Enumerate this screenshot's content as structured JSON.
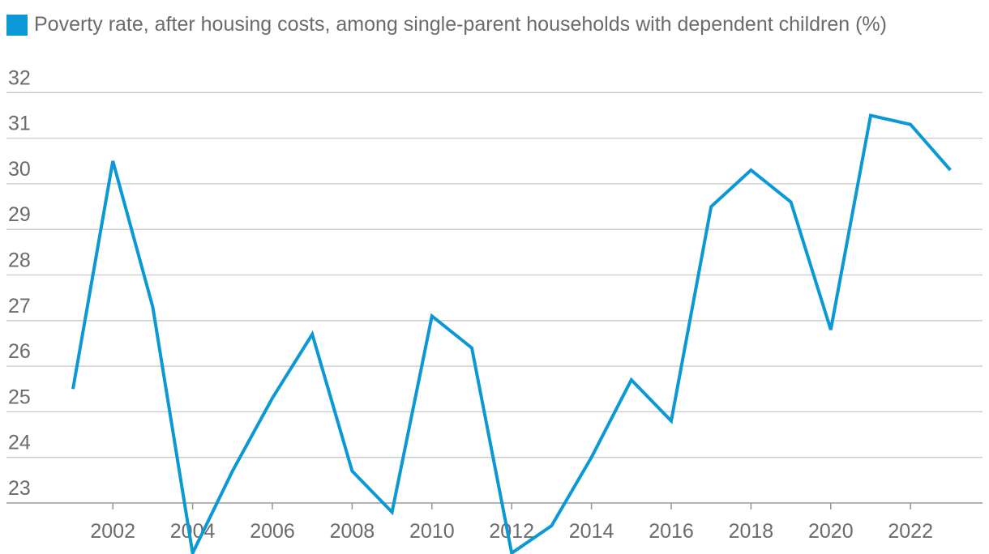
{
  "chart_data": {
    "type": "line",
    "title": "",
    "xlabel": "",
    "ylabel": "",
    "legend_position": "top-left",
    "grid": true,
    "ylim": [
      22,
      33
    ],
    "xlim": [
      2001,
      2023
    ],
    "y_ticks": [
      23,
      24,
      25,
      26,
      27,
      28,
      29,
      30,
      31,
      32
    ],
    "y_tick_labels": [
      "23",
      "24",
      "25",
      "26",
      "27",
      "28",
      "29",
      "30",
      "31",
      "32"
    ],
    "x_ticks": [
      2002,
      2004,
      2006,
      2008,
      2010,
      2012,
      2014,
      2016,
      2018,
      2020,
      2022
    ],
    "x_tick_labels": [
      "2002",
      "2004",
      "2006",
      "2008",
      "2010",
      "2012",
      "2014",
      "2016",
      "2018",
      "2020",
      "2022"
    ],
    "x": [
      2001,
      2002,
      2003,
      2004,
      2005,
      2006,
      2007,
      2008,
      2009,
      2010,
      2011,
      2012,
      2013,
      2014,
      2015,
      2016,
      2017,
      2018,
      2019,
      2020,
      2021,
      2022,
      2023
    ],
    "series": [
      {
        "name": "Poverty rate, after housing costs, among single-parent households with dependent children (%)",
        "color": "#0a98d6",
        "values": [
          25.5,
          30.5,
          27.3,
          21.9,
          23.7,
          25.3,
          26.7,
          23.7,
          22.8,
          27.1,
          26.4,
          21.9,
          22.5,
          24.0,
          25.7,
          24.8,
          29.5,
          30.3,
          29.6,
          26.8,
          31.5,
          31.3,
          30.3
        ]
      }
    ]
  }
}
